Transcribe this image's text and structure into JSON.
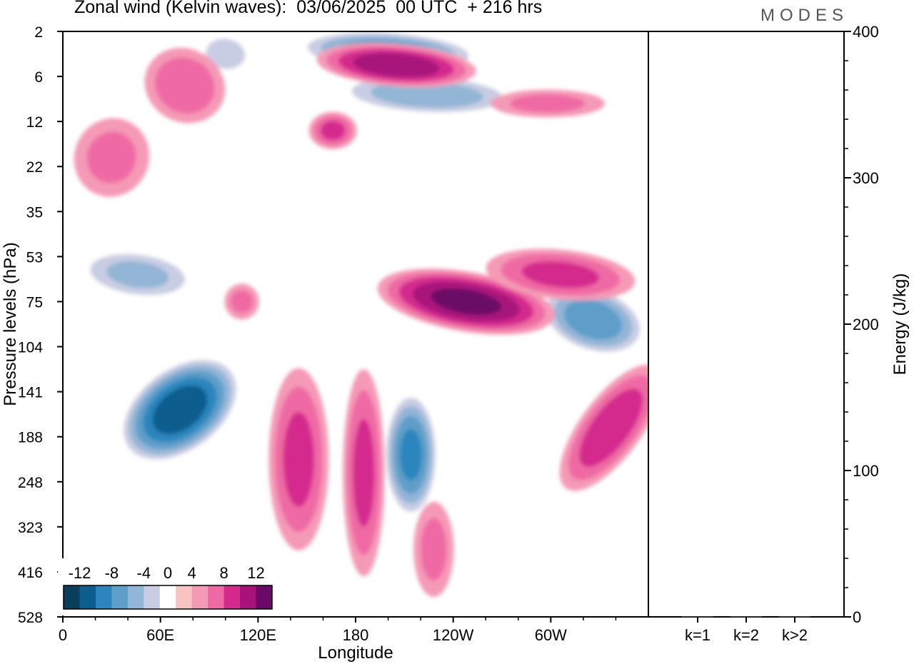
{
  "title": "Zonal wind (Kelvin waves):  03/06/2025  00 UTC  + 216 hrs",
  "brand": "MODES",
  "chart_data": [
    {
      "type": "heatmap",
      "title": "Zonal wind (Kelvin waves):  03/06/2025  00 UTC  + 216 hrs",
      "xlabel": "Longitude",
      "ylabel": "Pressure levels (hPa)",
      "x_ticks": [
        "0",
        "60E",
        "120E",
        "180",
        "120W",
        "60W"
      ],
      "x_tick_lon": [
        0,
        60,
        120,
        180,
        240,
        300
      ],
      "x_range": [
        0,
        360
      ],
      "y_ticks": [
        "2",
        "6",
        "12",
        "22",
        "35",
        "53",
        "75",
        "104",
        "141",
        "188",
        "248",
        "323",
        "416",
        "528"
      ],
      "colorbar": {
        "labels": [
          "-12",
          "-8",
          "-4",
          "0",
          "4",
          "8",
          "12"
        ],
        "levels": [
          -14,
          -12,
          -10,
          -8,
          -6,
          -4,
          -2,
          2,
          4,
          6,
          8,
          10,
          12,
          14
        ],
        "colors": [
          "#0b3d5c",
          "#0d5d8f",
          "#2a86bd",
          "#5e9ec9",
          "#93b5d6",
          "#c9cde3",
          "#ffffff",
          "#f7c3c3",
          "#f59ab6",
          "#ef6aa4",
          "#d42a8e",
          "#a8127b",
          "#6b0a66"
        ]
      },
      "features": [
        {
          "lon": 72,
          "level": 8.4,
          "value": -13,
          "dlon": 28,
          "dlev": 1.6,
          "tilt": -0.85
        },
        {
          "lon": 214,
          "level": 9.4,
          "value": -10,
          "dlon": 18,
          "dlev": 1.5,
          "tilt": 0
        },
        {
          "lon": 326,
          "level": 6.4,
          "value": -9,
          "dlon": 36,
          "dlev": 0.8,
          "tilt": -0.55
        },
        {
          "lon": 46,
          "level": 5.4,
          "value": -6,
          "dlon": 40,
          "dlev": 0.6,
          "tilt": -0.3
        },
        {
          "lon": 200,
          "level": 0.45,
          "value": -9,
          "dlon": 60,
          "dlev": 0.5,
          "tilt": -0.25
        },
        {
          "lon": 224,
          "level": 1.4,
          "value": -7,
          "dlon": 60,
          "dlev": 0.5,
          "tilt": -0.2
        },
        {
          "lon": 100,
          "level": 0.5,
          "value": -5,
          "dlon": 18,
          "dlev": 0.5,
          "tilt": -0.2
        },
        {
          "lon": 248,
          "level": 6.0,
          "value": 10,
          "dlon": 58,
          "dlev": 0.7,
          "tilt": -0.5
        },
        {
          "lon": 306,
          "level": 5.4,
          "value": 6,
          "dlon": 50,
          "dlev": 0.6,
          "tilt": -0.3
        },
        {
          "lon": 337,
          "level": 8.8,
          "value": 7,
          "dlon": 20,
          "dlev": 1.8,
          "tilt": -0.3
        },
        {
          "lon": 145,
          "level": 9.5,
          "value": 6,
          "dlon": 20,
          "dlev": 2.2,
          "tilt": 0
        },
        {
          "lon": 185,
          "level": 9.8,
          "value": 6,
          "dlon": 14,
          "dlev": 2.5,
          "tilt": 0
        },
        {
          "lon": 228,
          "level": 11.5,
          "value": 4,
          "dlon": 14,
          "dlev": 1.2,
          "tilt": 0
        },
        {
          "lon": 205,
          "level": 0.75,
          "value": 9,
          "dlon": 52,
          "dlev": 0.5,
          "tilt": -0.3
        },
        {
          "lon": 166,
          "level": 2.2,
          "value": 6,
          "dlon": 16,
          "dlev": 0.45,
          "tilt": 0
        },
        {
          "lon": 75,
          "level": 1.2,
          "value": 5,
          "dlon": 28,
          "dlev": 0.9,
          "tilt": -0.6
        },
        {
          "lon": 30,
          "level": 2.8,
          "value": 4,
          "dlon": 26,
          "dlev": 1.0,
          "tilt": -0.4
        },
        {
          "lon": 110,
          "level": 6.0,
          "value": 4,
          "dlon": 12,
          "dlev": 0.45,
          "tilt": 0
        },
        {
          "lon": 298,
          "level": 1.6,
          "value": 4,
          "dlon": 40,
          "dlev": 0.35,
          "tilt": 0
        }
      ]
    },
    {
      "type": "bar",
      "categories": [
        "k=1",
        "k=2",
        "k>2"
      ],
      "values": [
        0.5,
        0.5,
        0.5
      ],
      "ylabel": "Energy (J/kg)",
      "ylim": [
        0,
        400
      ],
      "y_ticks": [
        0,
        100,
        200,
        300,
        400
      ]
    }
  ]
}
